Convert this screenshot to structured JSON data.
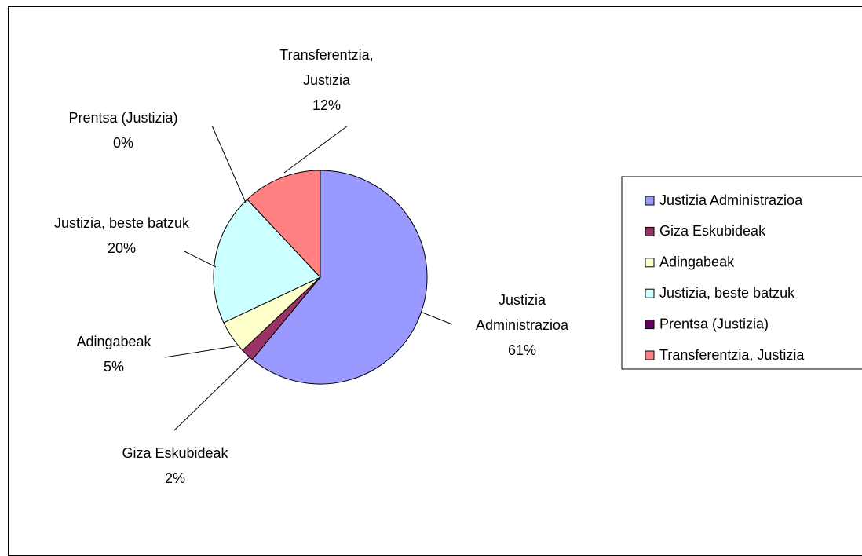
{
  "chart_data": {
    "type": "pie",
    "categories": [
      "Justizia Administrazioa",
      "Giza Eskubideak",
      "Adingabeak",
      "Justizia, beste batzuk",
      "Prentsa (Justizia)",
      "Transferentzia, Justizia"
    ],
    "values": [
      61,
      2,
      5,
      20,
      0,
      12
    ],
    "value_labels": [
      "61%",
      "2%",
      "5%",
      "20%",
      "0%",
      "12%"
    ],
    "colors": [
      "#9999ff",
      "#993366",
      "#ffffcc",
      "#ccffff",
      "#660066",
      "#ff8080"
    ],
    "legend": "right"
  }
}
